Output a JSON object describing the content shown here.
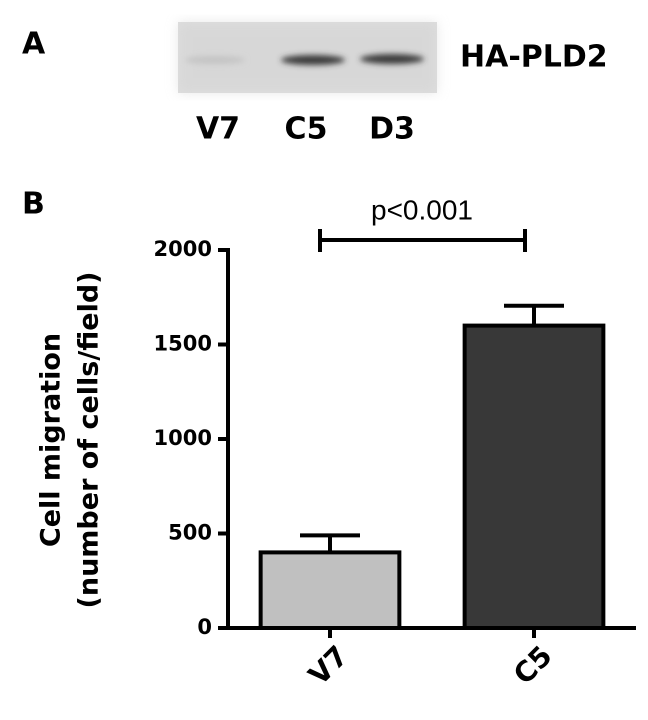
{
  "panel_a": {
    "label": "A",
    "protein": "HA-PLD2",
    "lanes": [
      "V7",
      "C5",
      "D3"
    ]
  },
  "chart_data": {
    "type": "bar",
    "panel_label": "B",
    "ylabel": [
      "Cell migration",
      "(number of cells/field)"
    ],
    "categories": [
      "V7",
      "C5"
    ],
    "values": [
      400,
      1600
    ],
    "errors": [
      90,
      105
    ],
    "colors": [
      "#c0c0c0",
      "#383838"
    ],
    "ylim": [
      0,
      2000
    ],
    "yticks": [
      0,
      500,
      1000,
      1500,
      2000
    ],
    "annotation": "p<0.001"
  }
}
